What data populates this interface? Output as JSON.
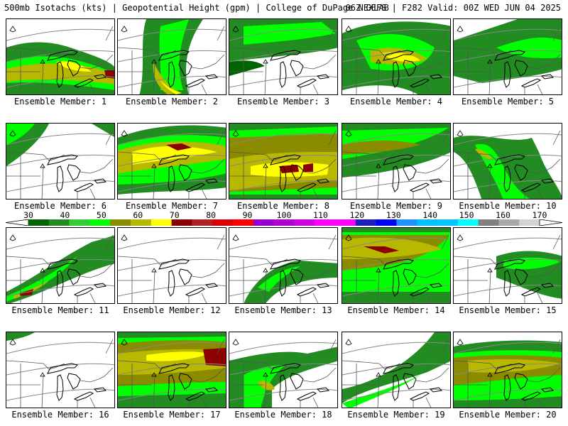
{
  "header": {
    "left": "500mb Isotachs (kts) | Geopotential Height (gpm) | College of DuPage NEXLAB",
    "right": "06Z GEFS | F282 Valid: 00Z WED JUN 04 2025"
  },
  "colorbar": {
    "ticks": [
      "30",
      "40",
      "50",
      "60",
      "70",
      "80",
      "90",
      "100",
      "110",
      "120",
      "130",
      "140",
      "150",
      "160",
      "170"
    ],
    "colors": [
      "#006400",
      "#228b22",
      "#32cd32",
      "#00ff00",
      "#8b8b00",
      "#b8b800",
      "#ffff00",
      "#8b0000",
      "#b22222",
      "#dc0000",
      "#ff0000",
      "#9400d3",
      "#b000d0",
      "#d000e0",
      "#ff00ff",
      "#ff00ff",
      "#1e1ebe",
      "#0000ff",
      "#1e90ff",
      "#00bfff",
      "#00c8ff",
      "#00ffff",
      "#808080",
      "#a9a9a9",
      "#d3d3d3"
    ]
  },
  "members": [
    {
      "label": "Ensemble Member: 1"
    },
    {
      "label": "Ensemble Member: 2"
    },
    {
      "label": "Ensemble Member: 3"
    },
    {
      "label": "Ensemble Member: 4"
    },
    {
      "label": "Ensemble Member: 5"
    },
    {
      "label": "Ensemble Member: 6"
    },
    {
      "label": "Ensemble Member: 7"
    },
    {
      "label": "Ensemble Member: 8"
    },
    {
      "label": "Ensemble Member: 9"
    },
    {
      "label": "Ensemble Member: 10"
    },
    {
      "label": "Ensemble Member: 11"
    },
    {
      "label": "Ensemble Member: 12"
    },
    {
      "label": "Ensemble Member: 13"
    },
    {
      "label": "Ensemble Member: 14"
    },
    {
      "label": "Ensemble Member: 15"
    },
    {
      "label": "Ensemble Member: 16"
    },
    {
      "label": "Ensemble Member: 17"
    },
    {
      "label": "Ensemble Member: 18"
    },
    {
      "label": "Ensemble Member: 19"
    },
    {
      "label": "Ensemble Member: 20"
    }
  ]
}
